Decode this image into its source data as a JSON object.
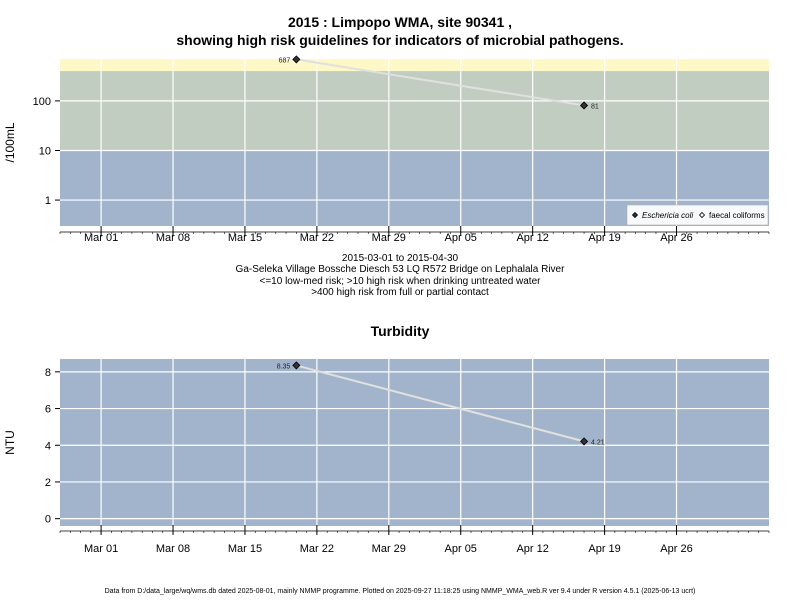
{
  "titles": {
    "line1": "2015 : Limpopo WMA, site 90341 ,",
    "line2": "showing high risk guidelines for indicators of microbial pathogens."
  },
  "captions": {
    "date_range": "2015-03-01 to 2015-04-30",
    "site_desc": "Ga-Seleka Village Bossche Diesch 53 LQ R572 Bridge on Lephalala River",
    "guideline1": "<=10 low-med risk; >10 high risk when drinking untreated water",
    "guideline2": ">400 high risk from full or partial contact"
  },
  "footer": "Data from D:/data_large/wq/wms.db dated 2025-08-01, mainly NMMP programme. Plotted on 2025-09-27 11:18:25 using NMMP_WMA_web.R ver 9.4 under R version 4.5.1 (2025-06-13 ucrt)",
  "colors": {
    "band_low": "#a2b4cc",
    "band_mid": "#c2cdc2",
    "band_high": "#fdf8c6",
    "panel": "#a2b4cc",
    "grid": "#ffffff",
    "line": "#e0e0e0",
    "point": "#333333"
  },
  "chart_data": [
    {
      "type": "line",
      "title": "",
      "ylabel": "/100mL",
      "y_scale": "log10",
      "ylim": [
        0.3,
        700
      ],
      "xlim": [
        "2015-02-25",
        "2015-05-05"
      ],
      "x_ticks": [
        "2015-03-01",
        "2015-03-08",
        "2015-03-15",
        "2015-03-22",
        "2015-03-29",
        "2015-04-05",
        "2015-04-12",
        "2015-04-19",
        "2015-04-26"
      ],
      "x_tick_labels": [
        "Mar 01",
        "Mar 08",
        "Mar 15",
        "Mar 22",
        "Mar 29",
        "Apr 05",
        "Apr 12",
        "Apr 19",
        "Apr 26"
      ],
      "y_ticks": [
        1,
        10,
        100
      ],
      "y_tick_labels": [
        "1",
        "10",
        "100"
      ],
      "risk_bands": [
        10,
        400
      ],
      "series": [
        {
          "name": "Eschericia coli",
          "marker": "diamond-filled",
          "points": [
            {
              "x": "2015-03-20",
              "y": 687,
              "label": "687"
            },
            {
              "x": "2015-04-17",
              "y": 81,
              "label": "81"
            }
          ]
        }
      ],
      "legend": {
        "placement": "bottom-right",
        "entries": [
          {
            "name": "Eschericia coli",
            "marker": "diamond-filled",
            "italic": true
          },
          {
            "name": "faecal coliforms",
            "marker": "diamond-open",
            "italic": false
          }
        ]
      },
      "grid": true
    },
    {
      "type": "line",
      "title": "Turbidity",
      "ylabel": "NTU",
      "y_scale": "linear",
      "ylim": [
        -0.4,
        8.7
      ],
      "xlim": [
        "2015-02-25",
        "2015-05-05"
      ],
      "x_ticks": [
        "2015-03-01",
        "2015-03-08",
        "2015-03-15",
        "2015-03-22",
        "2015-03-29",
        "2015-04-05",
        "2015-04-12",
        "2015-04-19",
        "2015-04-26"
      ],
      "x_tick_labels": [
        "Mar 01",
        "Mar 08",
        "Mar 15",
        "Mar 22",
        "Mar 29",
        "Apr 05",
        "Apr 12",
        "Apr 19",
        "Apr 26"
      ],
      "y_ticks": [
        0,
        2,
        4,
        6,
        8
      ],
      "y_tick_labels": [
        "0",
        "2",
        "4",
        "6",
        "8"
      ],
      "series": [
        {
          "name": "",
          "marker": "diamond-filled",
          "points": [
            {
              "x": "2015-03-20",
              "y": 8.35,
              "label": "8.35"
            },
            {
              "x": "2015-04-17",
              "y": 4.21,
              "label": "4.21"
            }
          ]
        }
      ],
      "grid": true
    }
  ]
}
